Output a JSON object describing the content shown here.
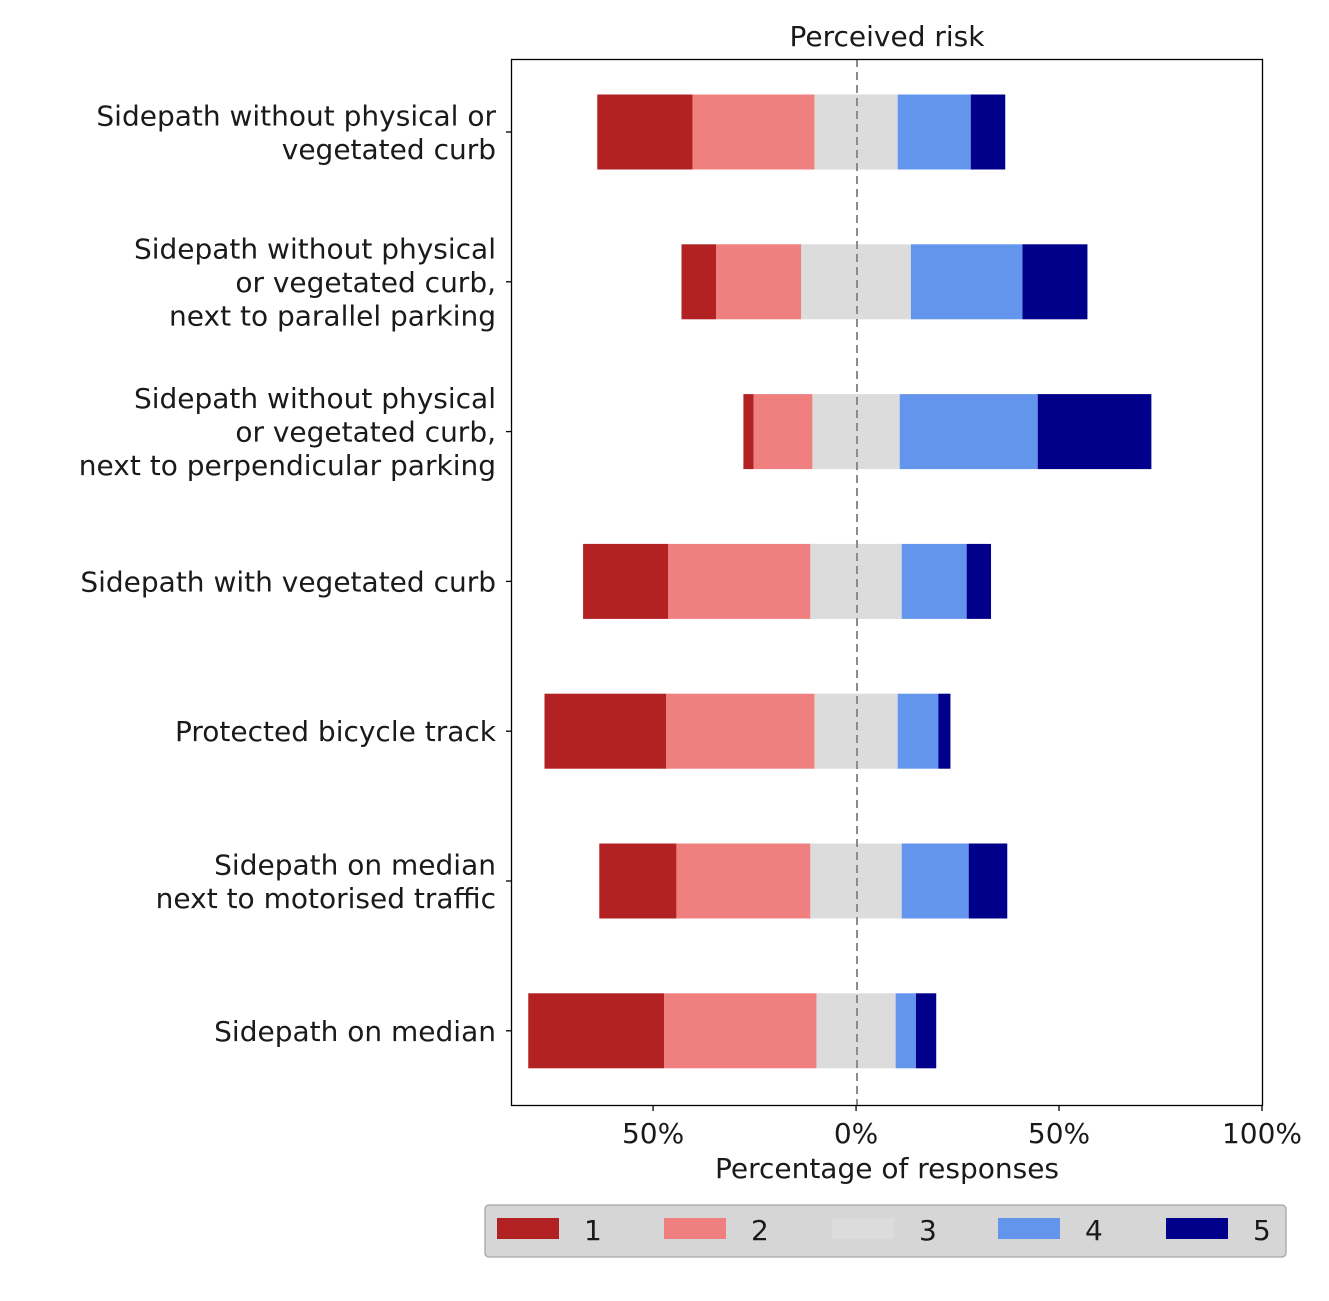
{
  "chart_data": {
    "type": "bar",
    "orientation": "horizontal",
    "stacked": true,
    "diverging": true,
    "title": "Perceived risk",
    "xlabel": "Percentage of responses",
    "ylabel": "",
    "xlim": [
      -85,
      100
    ],
    "xticks": [
      -50,
      0,
      50,
      100
    ],
    "xtick_labels": [
      "50%",
      "0%",
      "50%",
      "100%"
    ],
    "center_line": 0,
    "legend_position": "bottom",
    "categories": [
      [
        "Sidepath without physical or",
        "vegetated curb"
      ],
      [
        "Sidepath without physical",
        "or vegetated curb,",
        "next to parallel parking"
      ],
      [
        "Sidepath without physical",
        "or vegetated curb,",
        "next to perpendicular parking"
      ],
      [
        "Sidepath with vegetated curb"
      ],
      [
        "Protected bicycle track"
      ],
      [
        "Sidepath on median",
        "next to motorised traffic"
      ],
      [
        "Sidepath on median"
      ]
    ],
    "series": [
      {
        "name": "1",
        "color": "#b22222",
        "values": [
          23.5,
          8.5,
          2.5,
          21,
          30,
          19,
          33.5
        ]
      },
      {
        "name": "2",
        "color": "#f08080",
        "values": [
          30,
          21,
          14.5,
          35,
          36.5,
          33,
          37.5
        ]
      },
      {
        "name": "3",
        "color": "#dcdcdc",
        "values": [
          20.5,
          27,
          21.5,
          22.5,
          20.5,
          22.5,
          19.5
        ]
      },
      {
        "name": "4",
        "color": "#6495ed",
        "values": [
          18,
          27.5,
          34,
          16,
          10,
          16.5,
          5
        ]
      },
      {
        "name": "5",
        "color": "#00008b",
        "values": [
          8.5,
          16,
          28,
          6,
          3,
          9.5,
          5
        ]
      }
    ]
  }
}
